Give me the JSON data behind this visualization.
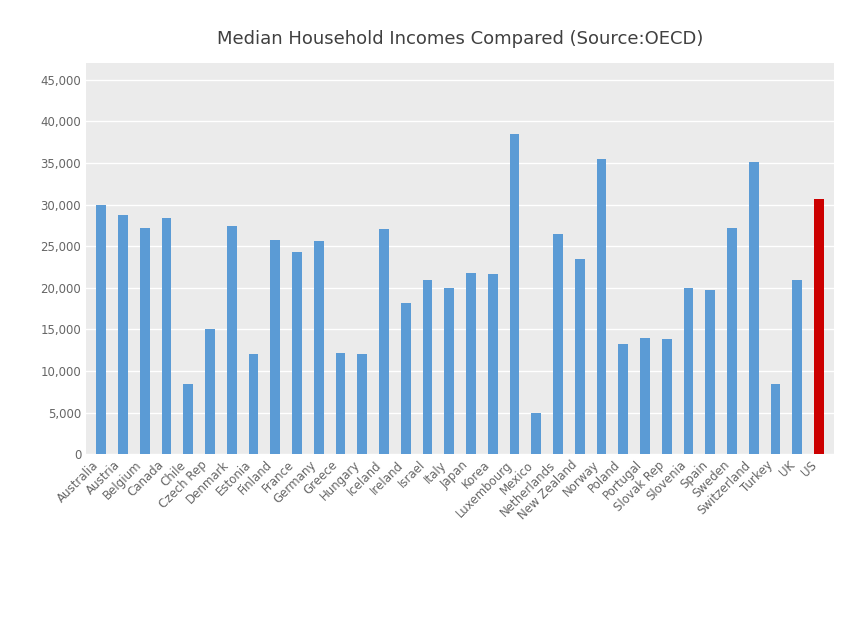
{
  "title": "Median Household Incomes Compared (Source:OECD)",
  "categories": [
    "Australia",
    "Austria",
    "Belgium",
    "Canada",
    "Chile",
    "Czech Rep",
    "Denmark",
    "Estonia",
    "Finland",
    "France",
    "Germany",
    "Greece",
    "Hungary",
    "Iceland",
    "Ireland",
    "Israel",
    "Italy",
    "Japan",
    "Korea",
    "Luxembourg",
    "Mexico",
    "Netherlands",
    "New Zealand",
    "Norway",
    "Poland",
    "Portugal",
    "Slovak Rep",
    "Slovenia",
    "Spain",
    "Sweden",
    "Switzerland",
    "Turkey",
    "UK",
    "US"
  ],
  "values": [
    30000,
    28700,
    27200,
    28400,
    8500,
    15100,
    27400,
    12000,
    25700,
    24300,
    25600,
    12200,
    12000,
    27100,
    18200,
    20900,
    20000,
    21800,
    21700,
    38500,
    5000,
    26500,
    23500,
    35500,
    13300,
    14000,
    13800,
    20000,
    19700,
    27200,
    35100,
    8500,
    21000,
    30700
  ],
  "bar_colors": [
    "#5B9BD5",
    "#5B9BD5",
    "#5B9BD5",
    "#5B9BD5",
    "#5B9BD5",
    "#5B9BD5",
    "#5B9BD5",
    "#5B9BD5",
    "#5B9BD5",
    "#5B9BD5",
    "#5B9BD5",
    "#5B9BD5",
    "#5B9BD5",
    "#5B9BD5",
    "#5B9BD5",
    "#5B9BD5",
    "#5B9BD5",
    "#5B9BD5",
    "#5B9BD5",
    "#5B9BD5",
    "#5B9BD5",
    "#5B9BD5",
    "#5B9BD5",
    "#5B9BD5",
    "#5B9BD5",
    "#5B9BD5",
    "#5B9BD5",
    "#5B9BD5",
    "#5B9BD5",
    "#5B9BD5",
    "#5B9BD5",
    "#5B9BD5",
    "#5B9BD5",
    "#CC0000"
  ],
  "ylim": [
    0,
    47000
  ],
  "yticks": [
    0,
    5000,
    10000,
    15000,
    20000,
    25000,
    30000,
    35000,
    40000,
    45000
  ],
  "figure_bg": "#FFFFFF",
  "plot_bg": "#EBEBEB",
  "title_fontsize": 13,
  "tick_fontsize": 8.5,
  "grid_color": "#FFFFFF",
  "bar_width": 0.45,
  "label_color": "#666666",
  "title_color": "#404040"
}
